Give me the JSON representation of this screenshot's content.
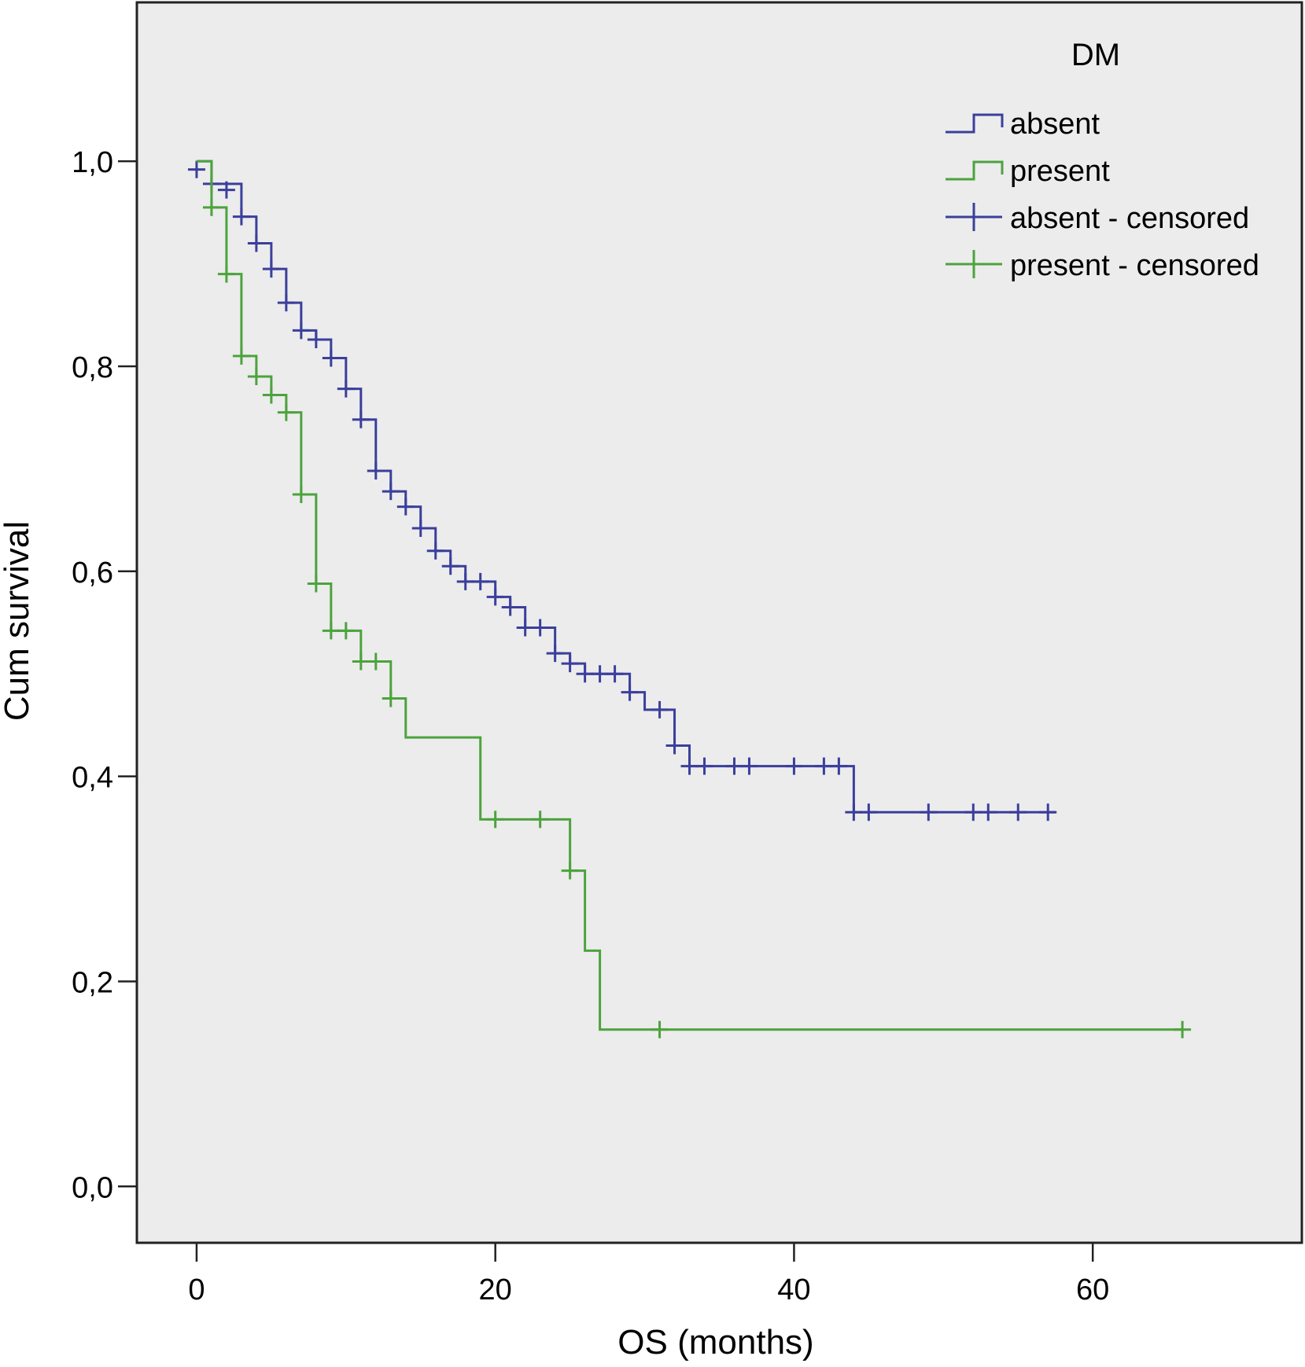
{
  "chart_data": {
    "type": "line",
    "subtype": "kaplan-meier-step",
    "title": "",
    "xlabel": "OS (months)",
    "ylabel": "Cum survival",
    "xlim": [
      -4,
      74
    ],
    "ylim": [
      -0.055,
      1.155
    ],
    "x_ticks": [
      0,
      20,
      40,
      60
    ],
    "x_tick_labels": [
      "0",
      "20",
      "40",
      "60"
    ],
    "y_ticks": [
      0.0,
      0.2,
      0.4,
      0.6,
      0.8,
      1.0
    ],
    "y_tick_labels": [
      "0,0",
      "0,2",
      "0,4",
      "0,6",
      "0,8",
      "1,0"
    ],
    "grid": false,
    "plot_background": "#ececec",
    "legend": {
      "title": "DM",
      "placement": "top-right",
      "entries": [
        {
          "label": "absent",
          "kind": "step",
          "color": "#3b3f9c"
        },
        {
          "label": "present",
          "kind": "step",
          "color": "#4ca33d"
        },
        {
          "label": "absent - censored",
          "kind": "cross",
          "color": "#3b3f9c"
        },
        {
          "label": "present - censored",
          "kind": "cross",
          "color": "#4ca33d"
        }
      ]
    },
    "series": [
      {
        "name": "absent",
        "color": "#3b3f9c",
        "steps": [
          [
            0,
            1.0
          ],
          [
            1,
            0.978
          ],
          [
            3,
            0.946
          ],
          [
            4,
            0.92
          ],
          [
            5,
            0.895
          ],
          [
            6,
            0.862
          ],
          [
            7,
            0.835
          ],
          [
            8,
            0.826
          ],
          [
            9,
            0.808
          ],
          [
            10,
            0.778
          ],
          [
            11,
            0.748
          ],
          [
            12,
            0.698
          ],
          [
            13,
            0.678
          ],
          [
            14,
            0.663
          ],
          [
            15,
            0.642
          ],
          [
            16,
            0.62
          ],
          [
            17,
            0.605
          ],
          [
            18,
            0.59
          ],
          [
            20,
            0.575
          ],
          [
            21,
            0.565
          ],
          [
            22,
            0.545
          ],
          [
            24,
            0.52
          ],
          [
            25,
            0.51
          ],
          [
            26,
            0.5
          ],
          [
            29,
            0.482
          ],
          [
            30,
            0.465
          ],
          [
            32,
            0.43
          ],
          [
            33,
            0.41
          ],
          [
            44,
            0.365
          ],
          [
            57.5,
            0.365
          ]
        ],
        "censored": [
          [
            0,
            0.992
          ],
          [
            1,
            0.978
          ],
          [
            2,
            0.972
          ],
          [
            3,
            0.946
          ],
          [
            4,
            0.92
          ],
          [
            5,
            0.895
          ],
          [
            6,
            0.862
          ],
          [
            7,
            0.835
          ],
          [
            8,
            0.826
          ],
          [
            9,
            0.808
          ],
          [
            10,
            0.778
          ],
          [
            11,
            0.748
          ],
          [
            12,
            0.698
          ],
          [
            13,
            0.678
          ],
          [
            14,
            0.663
          ],
          [
            15,
            0.642
          ],
          [
            16,
            0.62
          ],
          [
            17,
            0.605
          ],
          [
            18,
            0.59
          ],
          [
            19,
            0.59
          ],
          [
            20,
            0.575
          ],
          [
            21,
            0.565
          ],
          [
            22,
            0.545
          ],
          [
            23,
            0.545
          ],
          [
            24,
            0.52
          ],
          [
            25,
            0.51
          ],
          [
            26,
            0.5
          ],
          [
            27,
            0.5
          ],
          [
            28,
            0.5
          ],
          [
            29,
            0.482
          ],
          [
            31,
            0.465
          ],
          [
            32,
            0.43
          ],
          [
            33,
            0.41
          ],
          [
            34,
            0.41
          ],
          [
            36,
            0.41
          ],
          [
            37,
            0.41
          ],
          [
            40,
            0.41
          ],
          [
            42,
            0.41
          ],
          [
            43,
            0.41
          ],
          [
            44,
            0.365
          ],
          [
            45,
            0.365
          ],
          [
            49,
            0.365
          ],
          [
            52,
            0.365
          ],
          [
            53,
            0.365
          ],
          [
            55,
            0.365
          ],
          [
            57,
            0.365
          ]
        ]
      },
      {
        "name": "present",
        "color": "#4ca33d",
        "steps": [
          [
            0,
            1.0
          ],
          [
            1,
            0.955
          ],
          [
            2,
            0.89
          ],
          [
            3,
            0.81
          ],
          [
            4,
            0.79
          ],
          [
            5,
            0.772
          ],
          [
            6,
            0.755
          ],
          [
            7,
            0.675
          ],
          [
            8,
            0.588
          ],
          [
            9,
            0.542
          ],
          [
            11,
            0.512
          ],
          [
            13,
            0.476
          ],
          [
            14,
            0.438
          ],
          [
            19,
            0.358
          ],
          [
            25,
            0.308
          ],
          [
            26,
            0.23
          ],
          [
            27,
            0.153
          ],
          [
            66,
            0.153
          ]
        ],
        "censored": [
          [
            1,
            0.955
          ],
          [
            2,
            0.89
          ],
          [
            3,
            0.81
          ],
          [
            4,
            0.79
          ],
          [
            5,
            0.772
          ],
          [
            6,
            0.755
          ],
          [
            7,
            0.675
          ],
          [
            8,
            0.588
          ],
          [
            9,
            0.542
          ],
          [
            10,
            0.542
          ],
          [
            11,
            0.512
          ],
          [
            12,
            0.512
          ],
          [
            13,
            0.476
          ],
          [
            20,
            0.358
          ],
          [
            23,
            0.358
          ],
          [
            25,
            0.308
          ],
          [
            31,
            0.153
          ],
          [
            66,
            0.153
          ]
        ]
      }
    ]
  }
}
